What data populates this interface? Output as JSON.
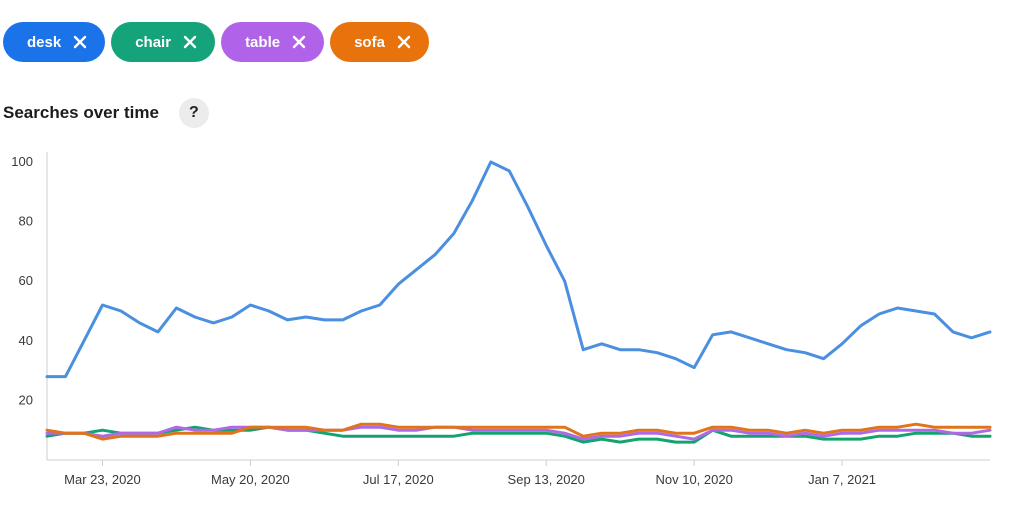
{
  "chips": [
    {
      "label": "desk",
      "color": "#1a73e8"
    },
    {
      "label": "chair",
      "color": "#14a37a"
    },
    {
      "label": "table",
      "color": "#b063e8"
    },
    {
      "label": "sofa",
      "color": "#e8720c"
    }
  ],
  "chart_title": "Searches over time",
  "help_label": "?",
  "chart_data": {
    "type": "line",
    "title": "Searches over time",
    "xlabel": "",
    "ylabel": "",
    "ylim": [
      0,
      100
    ],
    "yticks": [
      20,
      40,
      60,
      80,
      100
    ],
    "grid": false,
    "x_tick_labels": [
      "Mar 23, 2020",
      "May 20, 2020",
      "Jul 17, 2020",
      "Sep 13, 2020",
      "Nov 10, 2020",
      "Jan 7, 2021"
    ],
    "x_tick_index": [
      3,
      11,
      19,
      27,
      35,
      43
    ],
    "series": [
      {
        "name": "desk",
        "color": "#4a8fe0",
        "values": [
          28,
          28,
          40,
          52,
          50,
          46,
          43,
          51,
          48,
          46,
          48,
          52,
          50,
          47,
          48,
          47,
          47,
          50,
          52,
          59,
          64,
          69,
          76,
          87,
          100,
          97,
          85,
          72,
          60,
          37,
          39,
          37,
          37,
          36,
          34,
          31,
          42,
          43,
          41,
          39,
          37,
          36,
          34,
          39,
          45,
          49,
          51,
          50,
          49,
          43,
          41,
          43
        ]
      },
      {
        "name": "chair",
        "color": "#13a36d",
        "values": [
          8,
          9,
          9,
          10,
          9,
          9,
          9,
          10,
          11,
          10,
          10,
          10,
          11,
          10,
          10,
          9,
          8,
          8,
          8,
          8,
          8,
          8,
          8,
          9,
          9,
          9,
          9,
          9,
          8,
          6,
          7,
          6,
          7,
          7,
          6,
          6,
          10,
          8,
          8,
          8,
          8,
          8,
          7,
          7,
          7,
          8,
          8,
          9,
          9,
          9,
          8,
          8
        ]
      },
      {
        "name": "table",
        "color": "#b168e6",
        "values": [
          9,
          9,
          9,
          8,
          9,
          9,
          9,
          11,
          10,
          10,
          11,
          11,
          11,
          10,
          10,
          10,
          10,
          11,
          11,
          10,
          10,
          11,
          11,
          10,
          10,
          10,
          10,
          10,
          9,
          7,
          8,
          8,
          9,
          9,
          8,
          7,
          10,
          10,
          9,
          9,
          8,
          9,
          8,
          9,
          9,
          10,
          10,
          10,
          10,
          9,
          9,
          10
        ]
      },
      {
        "name": "sofa",
        "color": "#e0741a",
        "values": [
          10,
          9,
          9,
          7,
          8,
          8,
          8,
          9,
          9,
          9,
          9,
          11,
          11,
          11,
          11,
          10,
          10,
          12,
          12,
          11,
          11,
          11,
          11,
          11,
          11,
          11,
          11,
          11,
          11,
          8,
          9,
          9,
          10,
          10,
          9,
          9,
          11,
          11,
          10,
          10,
          9,
          10,
          9,
          10,
          10,
          11,
          11,
          12,
          11,
          11,
          11,
          11
        ]
      }
    ]
  }
}
